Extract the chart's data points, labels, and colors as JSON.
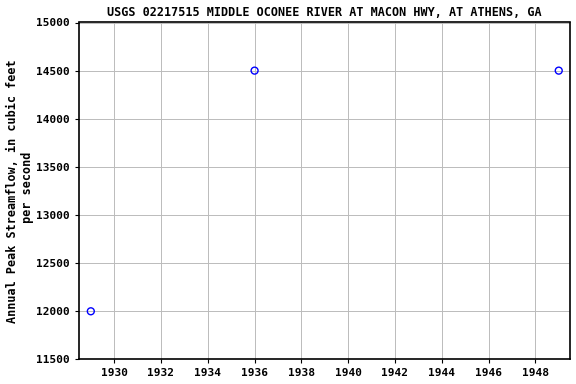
{
  "title": "USGS 02217515 MIDDLE OCONEE RIVER AT MACON HWY, AT ATHENS, GA",
  "xlabel": "",
  "ylabel": "Annual Peak Streamflow, in cubic feet\n per second",
  "x_data": [
    1929,
    1936,
    1949
  ],
  "y_data": [
    12000,
    14500,
    14500
  ],
  "xlim": [
    1928.5,
    1949.5
  ],
  "ylim": [
    11500,
    15000
  ],
  "xticks": [
    1930,
    1932,
    1934,
    1936,
    1938,
    1940,
    1942,
    1944,
    1946,
    1948
  ],
  "yticks": [
    11500,
    12000,
    12500,
    13000,
    13500,
    14000,
    14500,
    15000
  ],
  "marker_color": "blue",
  "marker_style": "o",
  "marker_size": 5,
  "grid_color": "#bbbbbb",
  "bg_color": "#ffffff",
  "plot_bg_color": "#ffffff",
  "title_fontsize": 8.5,
  "ylabel_fontsize": 8.5,
  "tick_fontsize": 8
}
